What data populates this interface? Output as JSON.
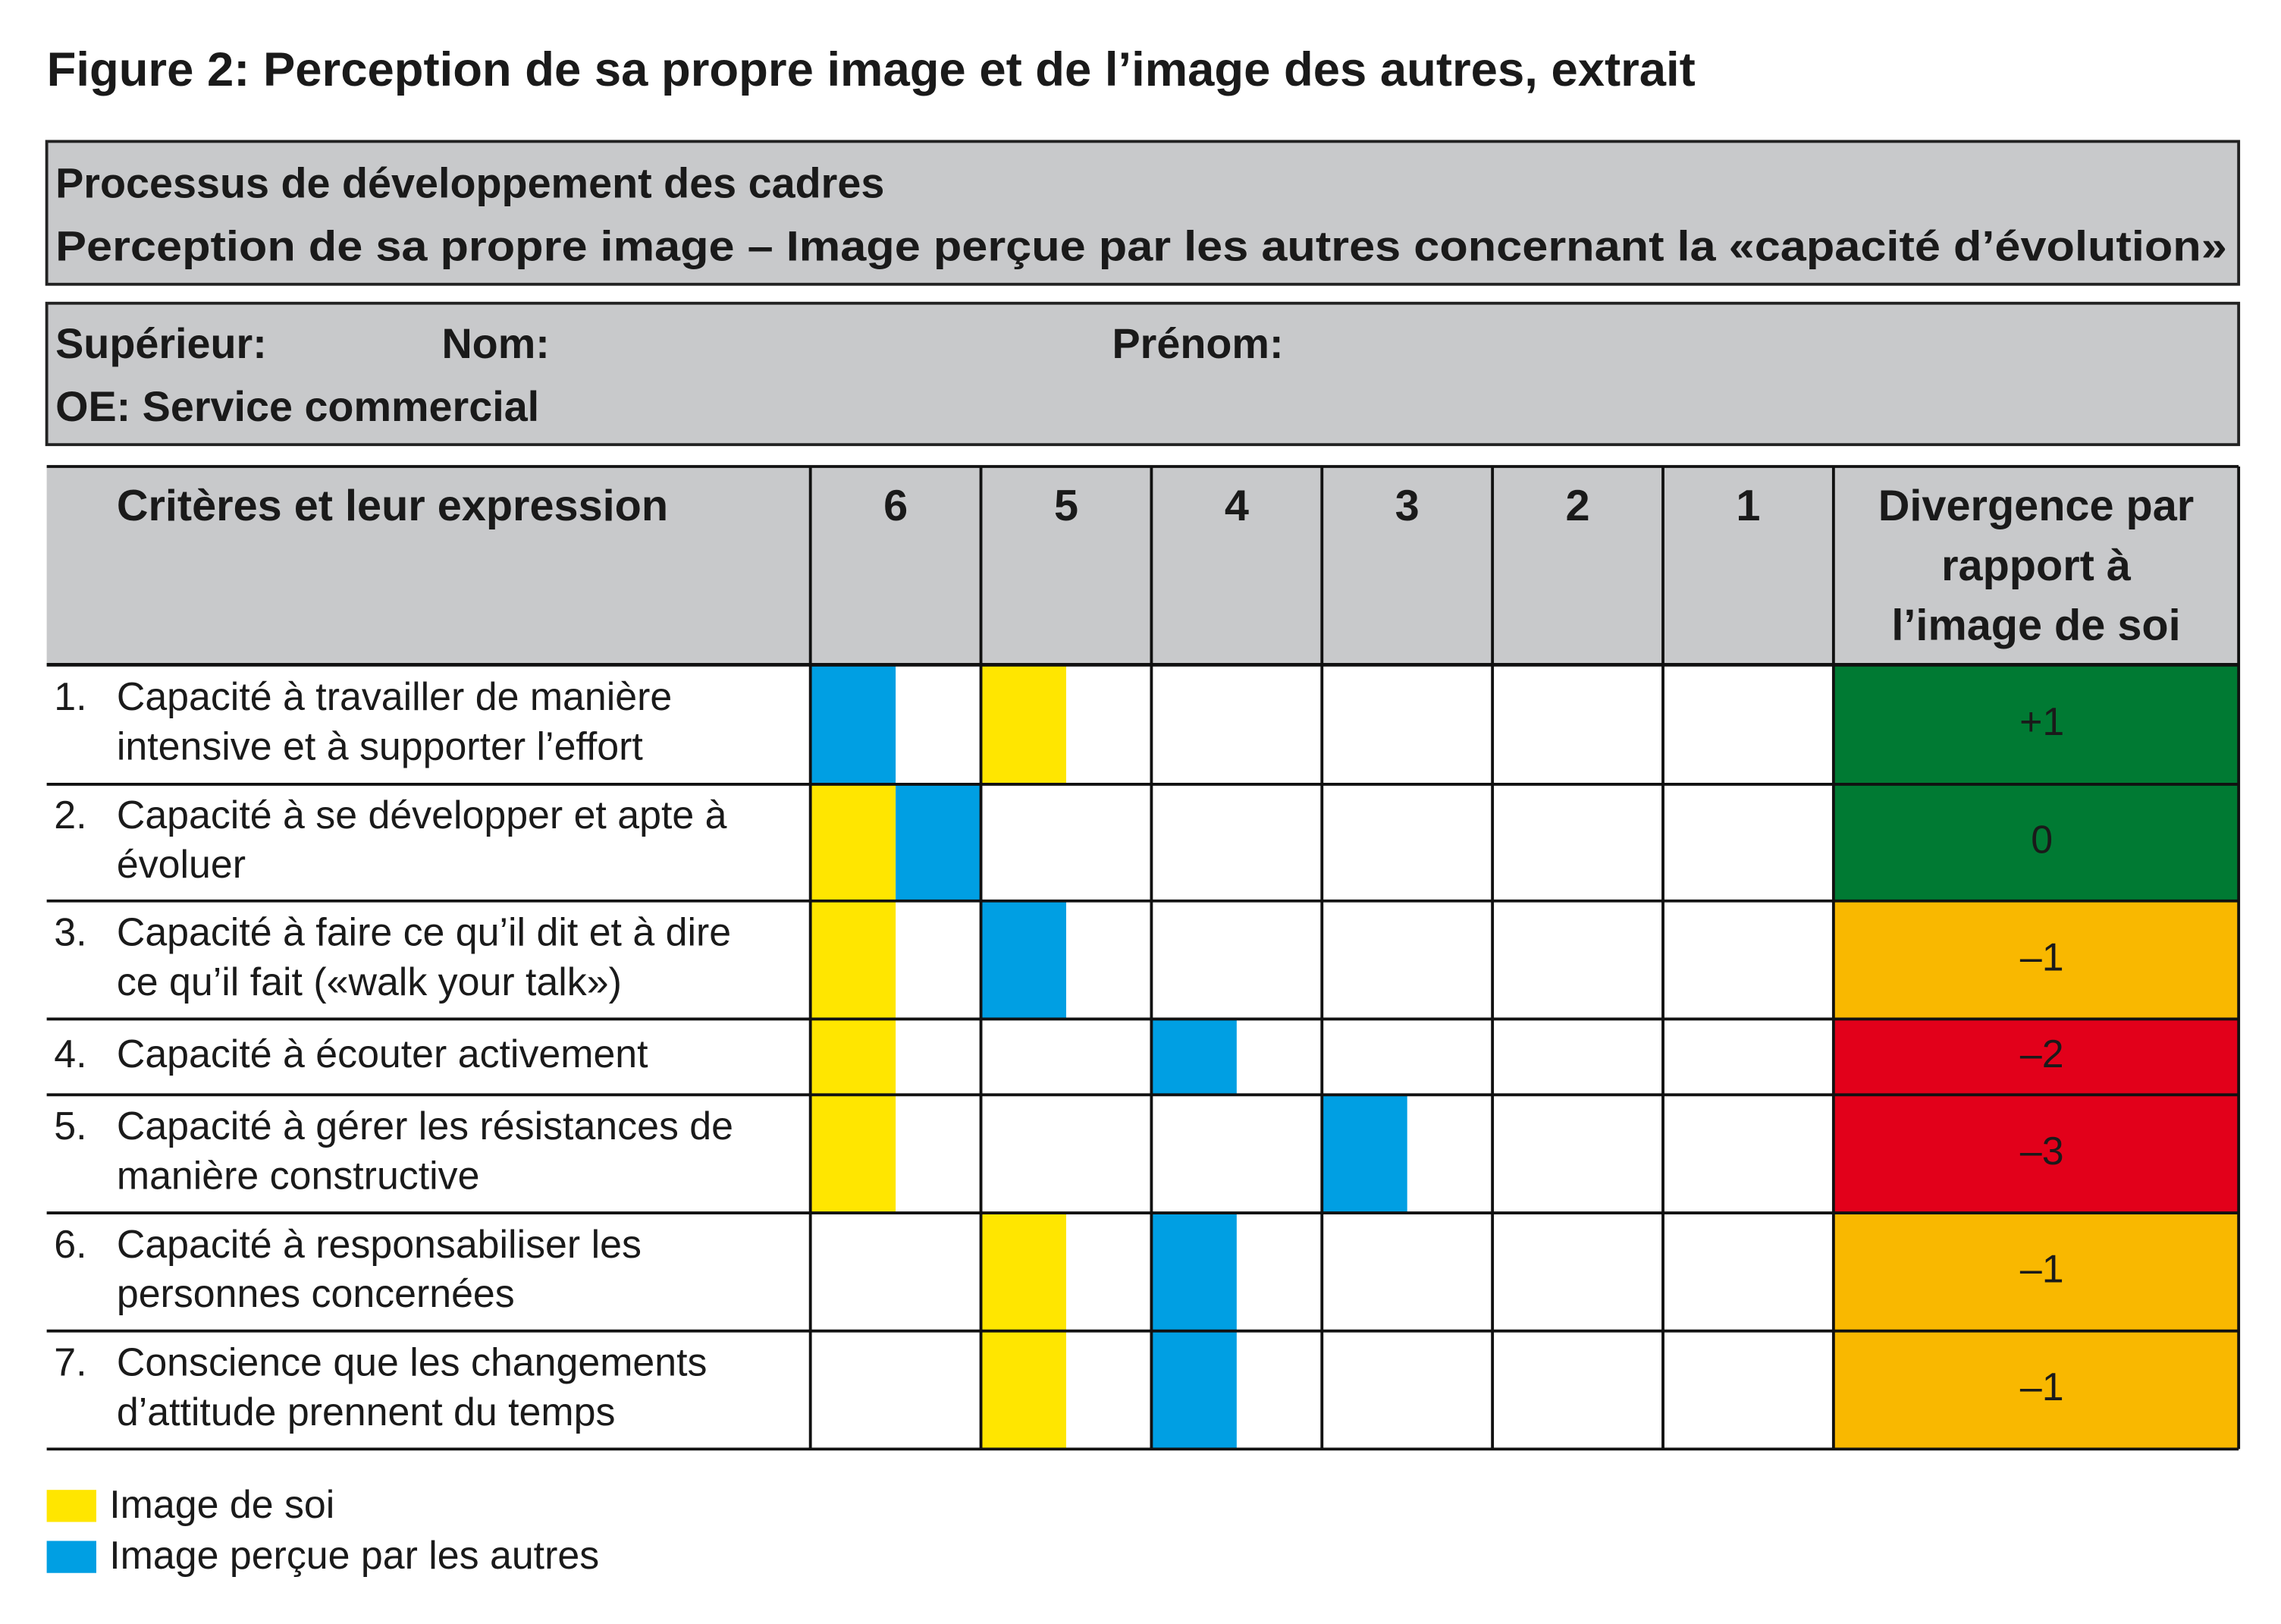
{
  "title": "Figure 2: Perception de sa propre image et de l’image des autres, extrait",
  "header": {
    "lines": [
      "Processus de développement des cadres",
      "Perception de sa propre image – Image perçue par les autres concernant la «capacité d’évolution»"
    ]
  },
  "info": {
    "superior": "Supérieur:",
    "name": "Nom:",
    "first_name": "Prénom:",
    "unit": "OE: Service commercial"
  },
  "table": {
    "criteria_header": "Critères et leur expression",
    "scale": [
      6,
      5,
      4,
      3,
      2,
      1
    ],
    "divergence_header": [
      "Divergence par",
      "rapport à",
      "l’image de soi"
    ],
    "self_color": "#ffe600",
    "others_color": "#009fe3",
    "rows": [
      {
        "number": "1.",
        "lines": [
          "Capacité à travailler de manière",
          "intensive et à supporter l’effort"
        ],
        "self": 5,
        "others": 6,
        "divergence": "+1",
        "color": "#007a33"
      },
      {
        "number": "2.",
        "lines": [
          "Capacité à se développer et apte à",
          "évoluer"
        ],
        "self": 6,
        "others": 6,
        "divergence": "0",
        "color": "#007a33"
      },
      {
        "number": "3.",
        "lines": [
          "Capacité à faire ce qu’il dit et à dire",
          "ce qu’il fait («walk your talk»)"
        ],
        "self": 6,
        "others": 5,
        "divergence": "–1",
        "color": "#f9b800"
      },
      {
        "number": "4.",
        "lines": [
          "Capacité à écouter activement"
        ],
        "self": 6,
        "others": 4,
        "divergence": "–2",
        "color": "#e2001a"
      },
      {
        "number": "5.",
        "lines": [
          "Capacité à gérer les résistances de",
          "manière constructive"
        ],
        "self": 6,
        "others": 3,
        "divergence": "–3",
        "color": "#e2001a"
      },
      {
        "number": "6.",
        "lines": [
          "Capacité à responsabiliser les",
          "personnes concernées"
        ],
        "self": 5,
        "others": 4,
        "divergence": "–1",
        "color": "#f9b800"
      },
      {
        "number": "7.",
        "lines": [
          "Conscience que les changements",
          "d’attitude prennent du temps"
        ],
        "self": 5,
        "others": 4,
        "divergence": "–1",
        "color": "#f9b800"
      }
    ]
  },
  "legend": [
    {
      "label": "Image de soi",
      "color": "#ffe600"
    },
    {
      "label": "Image perçue par les autres",
      "color": "#009fe3"
    }
  ]
}
